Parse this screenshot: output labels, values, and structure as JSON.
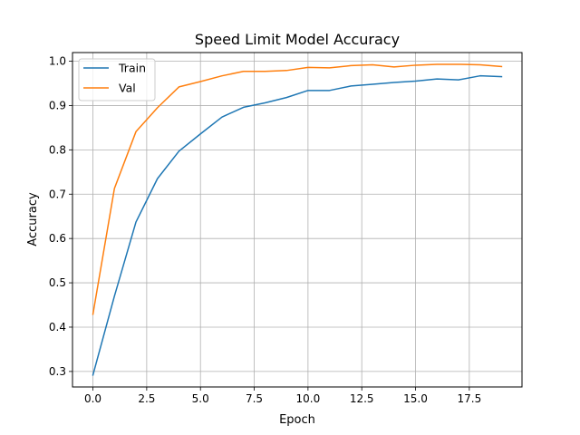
{
  "chart_data": {
    "type": "line",
    "title": "Speed Limit Model Accuracy",
    "xlabel": "Epoch",
    "ylabel": "Accuracy",
    "xlim": [
      -0.95,
      19.95
    ],
    "ylim": [
      0.265,
      1.0195
    ],
    "xticks": [
      0.0,
      2.5,
      5.0,
      7.5,
      10.0,
      12.5,
      15.0,
      17.5
    ],
    "xtick_labels": [
      "0.0",
      "2.5",
      "5.0",
      "7.5",
      "10.0",
      "12.5",
      "15.0",
      "17.5"
    ],
    "yticks": [
      0.3,
      0.4,
      0.5,
      0.6,
      0.7,
      0.8,
      0.9,
      1.0
    ],
    "ytick_labels": [
      "0.3",
      "0.4",
      "0.5",
      "0.6",
      "0.7",
      "0.8",
      "0.9",
      "1.0"
    ],
    "grid": true,
    "legend_position": "upper-left",
    "x": [
      0,
      1,
      2,
      3,
      4,
      5,
      6,
      7,
      8,
      9,
      10,
      11,
      12,
      13,
      14,
      15,
      16,
      17,
      18,
      19
    ],
    "series": [
      {
        "name": "Train",
        "color": "#1f77b4",
        "values": [
          0.292,
          0.47,
          0.637,
          0.735,
          0.797,
          0.836,
          0.874,
          0.896,
          0.906,
          0.918,
          0.934,
          0.934,
          0.944,
          0.948,
          0.952,
          0.955,
          0.96,
          0.958,
          0.967,
          0.965
        ]
      },
      {
        "name": "Val",
        "color": "#ff7f0e",
        "values": [
          0.429,
          0.713,
          0.841,
          0.895,
          0.942,
          0.954,
          0.967,
          0.977,
          0.977,
          0.979,
          0.986,
          0.985,
          0.99,
          0.992,
          0.987,
          0.991,
          0.993,
          0.993,
          0.992,
          0.988
        ]
      }
    ]
  }
}
